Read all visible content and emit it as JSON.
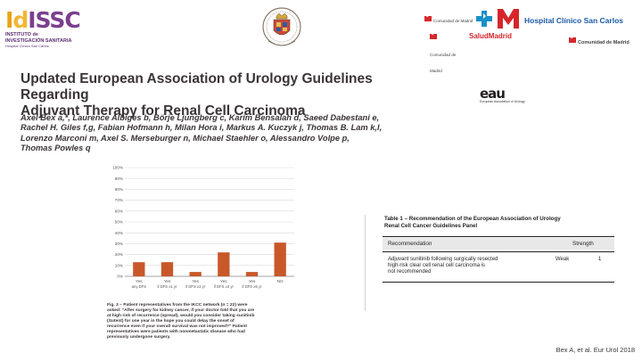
{
  "logos": {
    "idissc": {
      "mark_i": "I",
      "mark_d": "d",
      "mark_s": "ISSC",
      "line1": "INSTITUTO de",
      "line2": "INVESTIGACIÓN SANITARIA",
      "line3": "Hospital Clínico San Carlos"
    },
    "ucm": {
      "icon": "university-crest-icon"
    },
    "hospital": {
      "name": "Hospital Clínico San Carlos",
      "cm_top": "Comunidad de Madrid",
      "salud": "SaludMadrid",
      "cm_bottom": "Comunidad de Madrid",
      "cm_left_small": "Comunidad de Madrid",
      "brand_color": "#1a5aa6",
      "accent_color": "#d6262b"
    }
  },
  "paper": {
    "title_line1": "Updated European Association of Urology Guidelines Regarding",
    "title_line2": "Adjuvant Therapy for Renal Cell Carcinoma",
    "authors_line1": "Axel Bex a,*, Laurence Albiges b, Börje Ljungberg c, Karim Bensalah d, Saeed Dabestani e,",
    "authors_line2": "Rachel H. Giles f,g, Fabian Hofmann h, Milan Hora i, Markus A. Kuczyk j, Thomas B. Lam k,l,",
    "authors_line3": "Lorenzo Marconi m, Axel S. Merseburger n, Michael Staehler o, Alessandro Volpe p,",
    "authors_line4": "Thomas Powles q",
    "eau_mark": "eau",
    "eau_sub": "European Association of Urology"
  },
  "chart_data": {
    "type": "bar",
    "title": "",
    "xlabel": "",
    "ylabel": "",
    "ylim": [
      0,
      100
    ],
    "yticks": [
      "0%",
      "10%",
      "20%",
      "30%",
      "40%",
      "50%",
      "60%",
      "70%",
      "80%",
      "90%",
      "100%"
    ],
    "categories": [
      [
        "Yes",
        "any DFS"
      ],
      [
        "Yes",
        "if DFS ≥1 yr"
      ],
      [
        "Yes",
        "if DFS ≥2 yr"
      ],
      [
        "Yes",
        "if DFS ≥3 yr"
      ],
      [
        "Yes",
        "if DFS ≥5 yr"
      ],
      [
        "NO",
        ""
      ]
    ],
    "values": [
      13,
      13,
      4,
      22,
      4,
      31
    ],
    "bar_color": "#c8582a",
    "grid": true,
    "legend": "none"
  },
  "figure": {
    "caption": [
      "Fig. 3 – Patient representatives from the IKCC network (n = 22) were",
      "asked: \"After surgery for kidney cancer, if your doctor told that you are",
      "at high risk of recurrence (spread), would you consider taking sunitinib",
      "(Sutent) for one year in the hope you could delay the onset of",
      "recurrence even if your overall survival was not improved?\" Patient",
      "representatives were patients with nonmetastatic disease who had",
      "previously undergone surgery."
    ]
  },
  "table": {
    "caption_line1": "Table 1 – Recommendation of the European Association of Urology",
    "caption_line2": "Renal Cell Cancer Guidelines Panel",
    "header_recommendation": "Recommendation",
    "header_strength": "Strength",
    "row_text": [
      "Adjuvant sunitinib following surgically resected",
      "high-risk clear cell renal cell carcinoma is",
      "not recommended"
    ],
    "row_strength": "Weak",
    "row_loe": "1"
  },
  "citation": "Bex A, et al. Eur Urol 2018"
}
